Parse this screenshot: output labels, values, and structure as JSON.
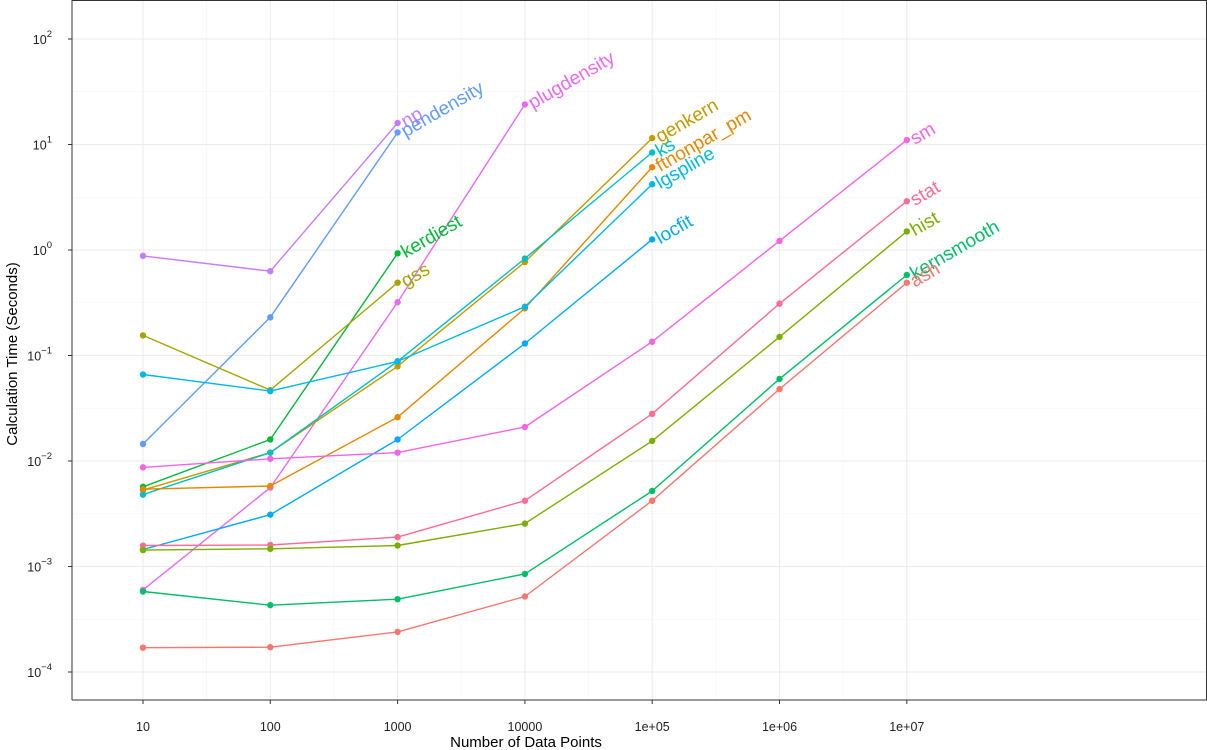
{
  "chart_data": {
    "type": "line",
    "xlabel": "Number of Data Points",
    "ylabel": "Calculation Time (Seconds)",
    "x_scale": "log10",
    "y_scale": "log10",
    "grid": true,
    "legend": "none (series labelled at line ends)",
    "x_ticks": [
      {
        "value": 10,
        "label": "10"
      },
      {
        "value": 100,
        "label": "100"
      },
      {
        "value": 1000,
        "label": "1000"
      },
      {
        "value": 10000,
        "label": "10000"
      },
      {
        "value": 100000,
        "label": "1e+05"
      },
      {
        "value": 1000000,
        "label": "1e+06"
      },
      {
        "value": 10000000,
        "label": "1e+07"
      }
    ],
    "y_ticks": [
      {
        "value": 0.0001,
        "base": "10",
        "exp": "−4"
      },
      {
        "value": 0.001,
        "base": "10",
        "exp": "−3"
      },
      {
        "value": 0.01,
        "base": "10",
        "exp": "−2"
      },
      {
        "value": 0.1,
        "base": "10",
        "exp": "−1"
      },
      {
        "value": 1,
        "base": "10",
        "exp": "0"
      },
      {
        "value": 10,
        "base": "10",
        "exp": "1"
      },
      {
        "value": 100,
        "base": "10",
        "exp": "2"
      }
    ],
    "series": [
      {
        "name": "np",
        "color": "#C77CFF",
        "x": [
          10,
          100,
          1000
        ],
        "y": [
          0.88,
          0.63,
          16
        ]
      },
      {
        "name": "pendensity",
        "color": "#619CFF",
        "x": [
          10,
          100,
          1000
        ],
        "y": [
          0.0145,
          0.23,
          13
        ]
      },
      {
        "name": "plugdensity",
        "color": "#E76BF3",
        "x": [
          10,
          100,
          1000,
          10000
        ],
        "y": [
          0.0006,
          0.0056,
          0.32,
          24
        ]
      },
      {
        "name": "kerdiest",
        "color": "#00BA38",
        "x": [
          10,
          100,
          1000
        ],
        "y": [
          0.0057,
          0.016,
          0.93
        ]
      },
      {
        "name": "gss",
        "color": "#A3A500",
        "x": [
          10,
          100,
          1000
        ],
        "y": [
          0.155,
          0.047,
          0.49
        ]
      },
      {
        "name": "genkern",
        "color": "#C49A00",
        "x": [
          10,
          100,
          1000,
          10000,
          100000
        ],
        "y": [
          0.0053,
          0.012,
          0.079,
          0.77,
          11.5
        ]
      },
      {
        "name": "ks",
        "color": "#00BFC4",
        "x": [
          10,
          100,
          1000,
          10000,
          100000
        ],
        "y": [
          0.0048,
          0.012,
          0.088,
          0.83,
          8.4
        ]
      },
      {
        "name": "ftnonpar_pm",
        "color": "#E58700",
        "x": [
          10,
          100,
          1000,
          10000,
          100000
        ],
        "y": [
          0.0054,
          0.0058,
          0.026,
          0.28,
          6.1
        ]
      },
      {
        "name": "lgspline",
        "color": "#00B8E7",
        "x": [
          10,
          100,
          1000,
          10000,
          100000
        ],
        "y": [
          0.066,
          0.046,
          0.088,
          0.29,
          4.2
        ]
      },
      {
        "name": "locfit",
        "color": "#00A9FF",
        "x": [
          10,
          100,
          1000,
          10000,
          100000
        ],
        "y": [
          0.00145,
          0.0031,
          0.016,
          0.13,
          1.26
        ]
      },
      {
        "name": "sm",
        "color": "#F564E3",
        "x": [
          10,
          100,
          1000,
          10000,
          100000,
          1000000,
          10000000
        ],
        "y": [
          0.0087,
          0.0105,
          0.012,
          0.021,
          0.135,
          1.22,
          11
        ]
      },
      {
        "name": "stat",
        "color": "#FF6C91",
        "x": [
          10,
          100,
          1000,
          10000,
          100000,
          1000000,
          10000000
        ],
        "y": [
          0.00158,
          0.0016,
          0.0019,
          0.0042,
          0.028,
          0.31,
          2.9
        ]
      },
      {
        "name": "hist",
        "color": "#7CAE00",
        "x": [
          10,
          100,
          1000,
          10000,
          100000,
          1000000,
          10000000
        ],
        "y": [
          0.00143,
          0.00147,
          0.00158,
          0.00255,
          0.0155,
          0.15,
          1.5
        ]
      },
      {
        "name": "kernsmooth",
        "color": "#00BE67",
        "x": [
          10,
          100,
          1000,
          10000,
          100000,
          1000000,
          10000000
        ],
        "y": [
          0.00058,
          0.00043,
          0.00049,
          0.00085,
          0.0052,
          0.06,
          0.58
        ]
      },
      {
        "name": "ash",
        "color": "#F8766D",
        "x": [
          10,
          100,
          1000,
          10000,
          100000,
          1000000,
          10000000
        ],
        "y": [
          0.00017,
          0.000172,
          0.00024,
          0.00052,
          0.0042,
          0.048,
          0.49
        ]
      }
    ]
  }
}
